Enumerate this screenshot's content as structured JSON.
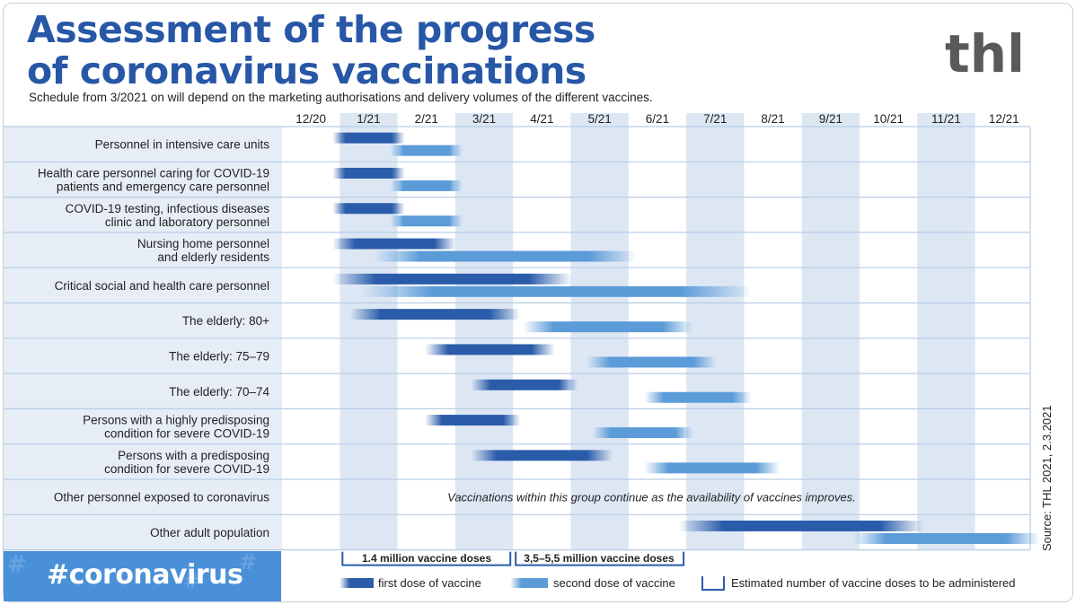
{
  "header": {
    "title_line1": "Assessment of the progress",
    "title_line2": "of coronavirus vaccinations",
    "subtitle": "Schedule from 3/2021 on will depend on the marketing authorisations and delivery volumes of the different vaccines.",
    "logo_text": "thl"
  },
  "colors": {
    "title": "#2757a6",
    "first_dose": "#2a5caa",
    "second_dose": "#5b9bd8",
    "band": "#dde7f4",
    "row_border": "#b8cde6",
    "label_bg": "#e6edf7",
    "hashtag_bg": "#4a90d9"
  },
  "chart_data": {
    "type": "gantt",
    "x": [
      "12/20",
      "1/21",
      "2/21",
      "3/21",
      "4/21",
      "5/21",
      "6/21",
      "7/21",
      "8/21",
      "9/21",
      "10/21",
      "11/21",
      "12/21"
    ],
    "shaded_columns": [
      "1/21",
      "3/21",
      "5/21",
      "7/21",
      "9/21",
      "11/21"
    ],
    "series_names": [
      "first dose of vaccine",
      "second dose of vaccine"
    ],
    "rows": [
      {
        "label": [
          "Personnel in intensive care units"
        ],
        "first": [
          1.0,
          2.0
        ],
        "second": [
          2.0,
          3.0
        ]
      },
      {
        "label": [
          "Health care personnel caring for COVID-19",
          "patients and emergency care personnel"
        ],
        "first": [
          1.0,
          2.0
        ],
        "second": [
          2.0,
          3.0
        ]
      },
      {
        "label": [
          "COVID-19 testing, infectious diseases",
          "clinic and laboratory personnel"
        ],
        "first": [
          1.0,
          2.0
        ],
        "second": [
          2.0,
          3.0
        ]
      },
      {
        "label": [
          "Nursing home personnel",
          "and elderly residents"
        ],
        "first": [
          1.0,
          2.9
        ],
        "second": [
          1.7,
          6.0
        ]
      },
      {
        "label": [
          "Critical social and health care personnel"
        ],
        "first": [
          1.0,
          4.9
        ],
        "second": [
          1.5,
          8.0
        ]
      },
      {
        "label": [
          "The elderly: 80+"
        ],
        "first": [
          1.3,
          4.0
        ],
        "second": [
          4.3,
          7.0
        ]
      },
      {
        "label": [
          "The elderly: 75–79"
        ],
        "first": [
          2.6,
          4.6
        ],
        "second": [
          5.4,
          7.4
        ]
      },
      {
        "label": [
          "The elderly: 70–74"
        ],
        "first": [
          3.4,
          5.0
        ],
        "second": [
          6.4,
          8.0
        ]
      },
      {
        "label": [
          "Persons with a highly predisposing",
          "condition for severe COVID-19"
        ],
        "first": [
          2.6,
          4.0
        ],
        "second": [
          5.5,
          7.0
        ]
      },
      {
        "label": [
          "Persons with a predisposing",
          "condition for severe COVID-19"
        ],
        "first": [
          3.4,
          5.6
        ],
        "second": [
          6.4,
          8.5
        ]
      },
      {
        "label": [
          "Other personnel exposed to coronavirus"
        ],
        "note": "Vaccinations within this group continue as the availability of vaccines improves."
      },
      {
        "label": [
          "Other adult population"
        ],
        "first": [
          7.0,
          11.0
        ],
        "second": [
          10.0,
          13.0
        ]
      }
    ],
    "dose_brackets": [
      {
        "label": "1.4 million vaccine doses",
        "from": 1.0,
        "to": 4.0
      },
      {
        "label": "3,5–5,5 million vaccine doses",
        "from": 4.0,
        "to": 7.0
      }
    ]
  },
  "legend": {
    "first_dose": "first dose of vaccine",
    "second_dose": "second dose of vaccine",
    "estimate": "Estimated number of vaccine doses to be administered"
  },
  "footer": {
    "hashtag": "#coronavirus",
    "source": "Source: THL 2021, 2.3.2021"
  }
}
